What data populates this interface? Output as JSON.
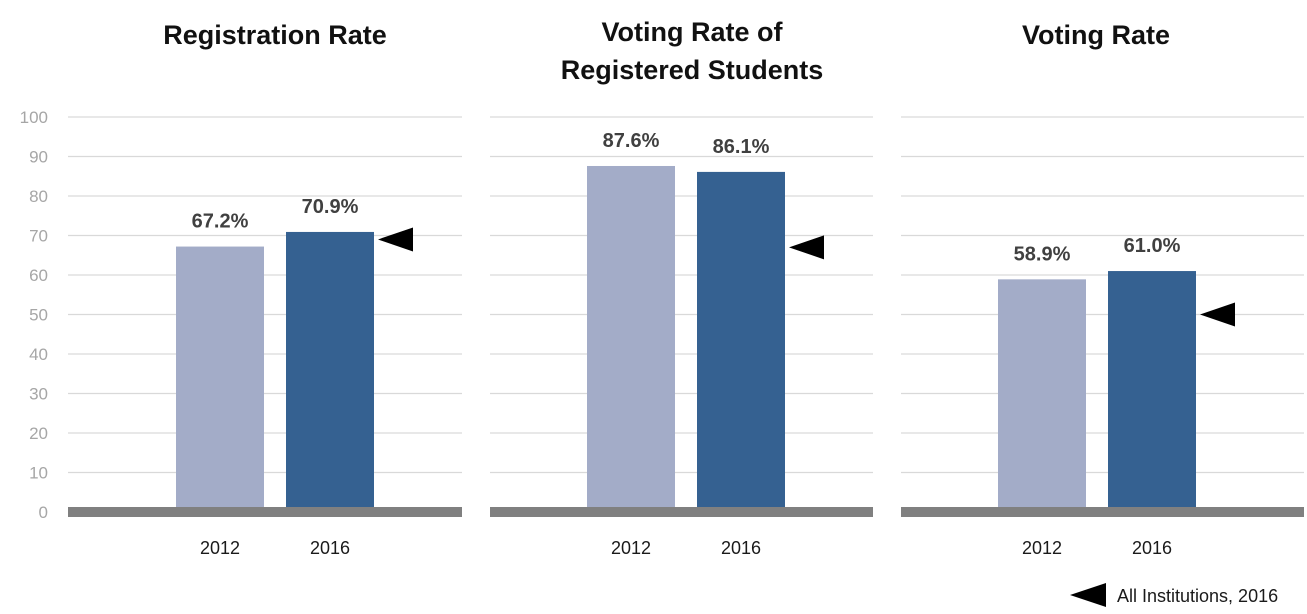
{
  "chart_data": [
    {
      "type": "bar",
      "title": [
        "Registration Rate"
      ],
      "categories": [
        "2012",
        "2016"
      ],
      "values": [
        67.2,
        70.9
      ],
      "data_labels": [
        "67.2%",
        "70.9%"
      ],
      "reference": {
        "name": "All Institutions, 2016",
        "value": 69
      },
      "ylim": [
        0,
        100
      ],
      "yticks": [
        0,
        10,
        20,
        30,
        40,
        50,
        60,
        70,
        80,
        90,
        100
      ],
      "grid": true
    },
    {
      "type": "bar",
      "title": [
        "Voting Rate of",
        "Registered Students"
      ],
      "categories": [
        "2012",
        "2016"
      ],
      "values": [
        87.6,
        86.1
      ],
      "data_labels": [
        "87.6%",
        "86.1%"
      ],
      "reference": {
        "name": "All Institutions, 2016",
        "value": 67
      },
      "ylim": [
        0,
        100
      ],
      "grid": true
    },
    {
      "type": "bar",
      "title": [
        "Voting Rate"
      ],
      "categories": [
        "2012",
        "2016"
      ],
      "values": [
        58.9,
        61.0
      ],
      "data_labels": [
        "58.9%",
        "61.0%"
      ],
      "reference": {
        "name": "All Institutions, 2016",
        "value": 50
      },
      "ylim": [
        0,
        100
      ],
      "grid": true
    }
  ],
  "colors": {
    "bar_2012": "#a3acc8",
    "bar_2016": "#356191",
    "gridline": "#d9d9d9",
    "baseline": "#808080",
    "marker": "#000000"
  },
  "legend": {
    "label": "All Institutions, 2016",
    "marker_icon": "left-triangle-icon",
    "position": "bottom-right"
  }
}
